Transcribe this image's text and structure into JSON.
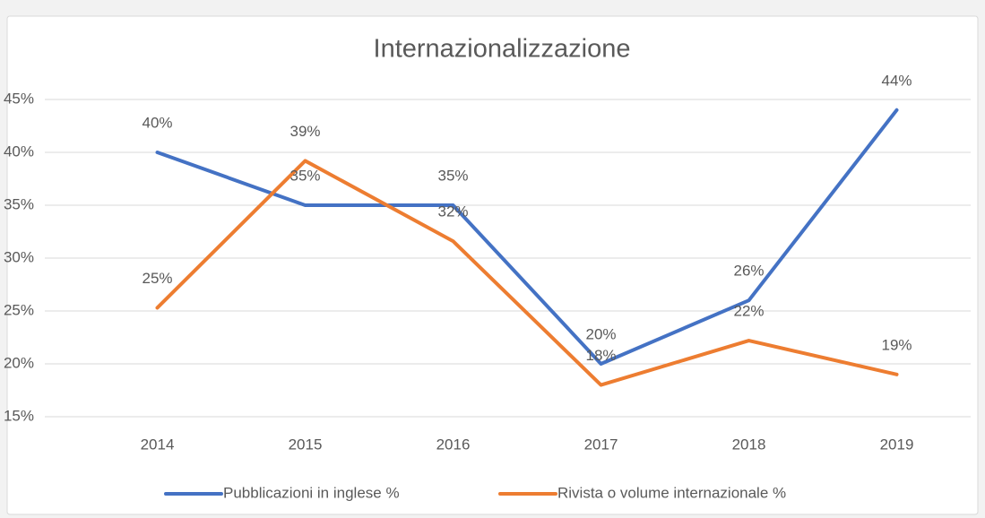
{
  "chart_data": {
    "type": "line",
    "title": "Internazionalizzazione",
    "categories": [
      "2014",
      "2015",
      "2016",
      "2017",
      "2018",
      "2019"
    ],
    "series": [
      {
        "name": "Pubblicazioni in inglese %",
        "color": "#4472c4",
        "values": [
          40,
          35,
          35,
          20,
          26,
          44
        ],
        "value_labels": [
          "40%",
          "35%",
          "35%",
          "20%",
          "26%",
          "44%"
        ]
      },
      {
        "name": "Rivista o volume internazionale %",
        "color": "#ed7d31",
        "values": [
          25.3,
          39.2,
          31.6,
          18,
          22.2,
          19
        ],
        "value_labels": [
          "25%",
          "39%",
          "32%",
          "18%",
          "22%",
          "19%"
        ]
      }
    ],
    "ylim": [
      15,
      45
    ],
    "yticks": [
      {
        "value": 15,
        "label": "15%"
      },
      {
        "value": 20,
        "label": "20%"
      },
      {
        "value": 25,
        "label": "25%"
      },
      {
        "value": 30,
        "label": "30%"
      },
      {
        "value": 35,
        "label": "35%"
      },
      {
        "value": 40,
        "label": "40%"
      },
      {
        "value": 45,
        "label": "45%"
      }
    ],
    "grid": true,
    "legend": "bottom"
  }
}
